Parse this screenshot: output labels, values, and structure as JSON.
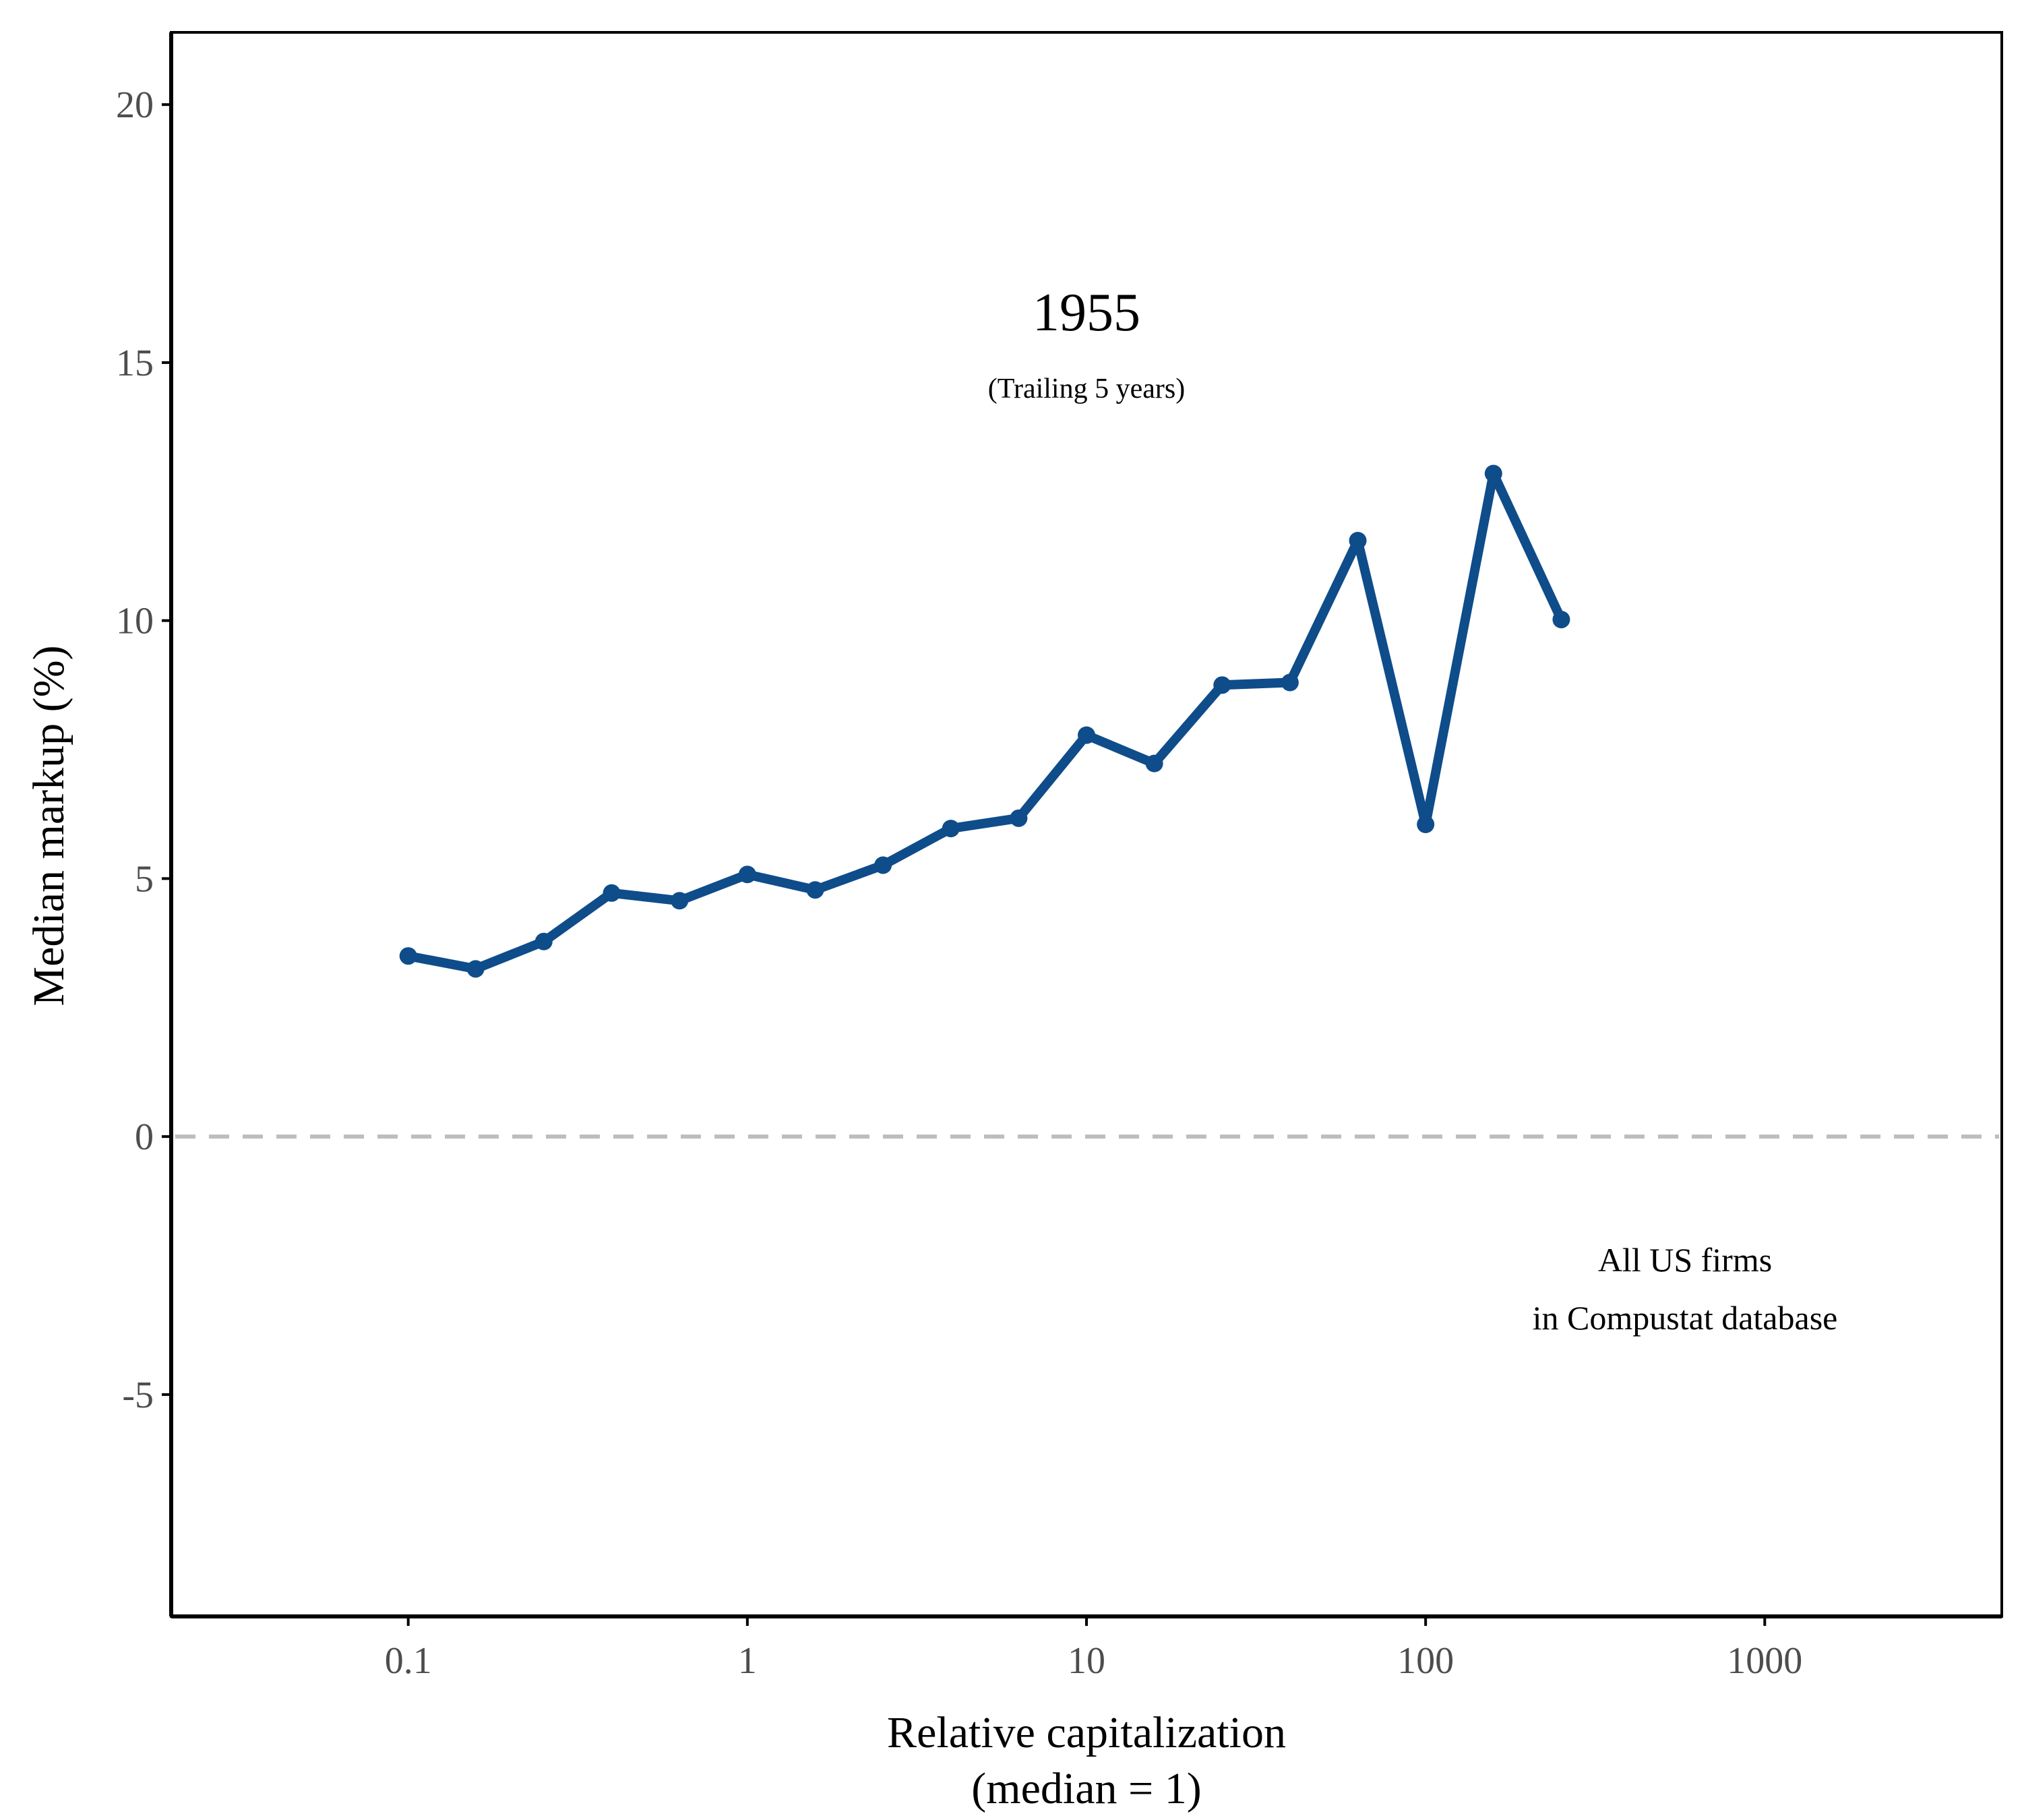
{
  "chart_data": {
    "type": "line",
    "x_scale": "log",
    "xlabel_lines": [
      "Relative capitalization",
      "(median = 1)"
    ],
    "ylabel": "Median markup (%)",
    "xlim": [
      0.02,
      5000
    ],
    "ylim": [
      -9.3,
      21.4
    ],
    "x_ticks": [
      0.1,
      1,
      10,
      100,
      1000
    ],
    "x_tick_labels": [
      "0.1",
      "1",
      "10",
      "100",
      "1000"
    ],
    "y_ticks": [
      -5,
      0,
      5,
      10,
      15,
      20
    ],
    "y_tick_labels": [
      "-5",
      "0",
      "5",
      "10",
      "15",
      "20"
    ],
    "reference_line": {
      "y": 0,
      "style": "dashed",
      "color": "#bdbdbd"
    },
    "grid": false,
    "series": [
      {
        "name": "Median markup",
        "color": "#0f4c8a",
        "x": [
          0.1,
          0.158,
          0.251,
          0.398,
          0.631,
          1,
          1.585,
          2.512,
          3.981,
          6.31,
          10,
          15.85,
          25.12,
          39.81,
          63.1,
          100,
          158.5,
          251.2
        ],
        "y": [
          3.5,
          3.25,
          3.78,
          4.72,
          4.57,
          5.08,
          4.78,
          5.26,
          5.97,
          6.17,
          7.78,
          7.23,
          8.75,
          8.8,
          11.55,
          6.05,
          12.85,
          10.02
        ]
      }
    ],
    "annotations": {
      "year": "1955",
      "subtitle": "(Trailing 5 years)",
      "note_line1": "All US firms",
      "note_line2": "in Compustat database"
    }
  }
}
